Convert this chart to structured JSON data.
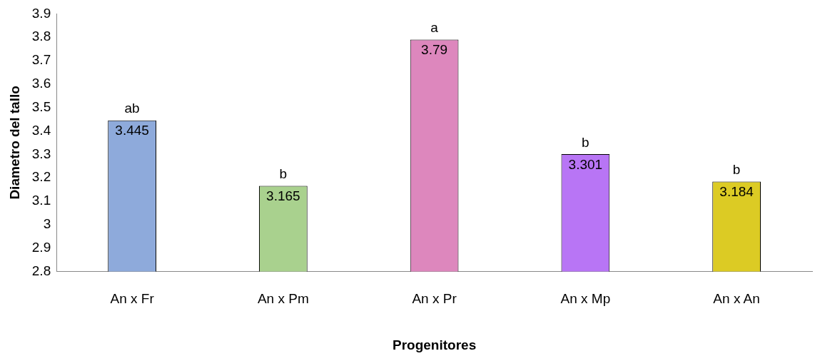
{
  "chart_data": {
    "type": "bar",
    "xlabel": "Progenitores",
    "ylabel": "Diametro del tallo",
    "categories": [
      "An x Fr",
      "An x Pm",
      "An x Pr",
      "An x Mp",
      "An x An"
    ],
    "values": [
      3.445,
      3.165,
      3.79,
      3.301,
      3.184
    ],
    "colors": [
      "#8eaadb",
      "#a9d18e",
      "#dd87bd",
      "#b875f5",
      "#dccb24"
    ],
    "ylim": [
      2.8,
      3.9
    ],
    "yticks": [
      2.8,
      2.9,
      3,
      3.1,
      3.2,
      3.3,
      3.4,
      3.5,
      3.6,
      3.7,
      3.8,
      3.9
    ],
    "grid": false,
    "legend": false,
    "data_labels": true,
    "annotations": [
      {
        "text": "ab",
        "x": "An x Fr",
        "y": 3.445
      },
      {
        "text": "b",
        "x": "An x Pm",
        "y": 3.165
      },
      {
        "text": "a",
        "x": "An x Pr",
        "y": 3.79
      },
      {
        "text": "b",
        "x": "An x Mp",
        "y": 3.301
      },
      {
        "text": "b",
        "x": "An x An",
        "y": 3.184
      }
    ]
  }
}
